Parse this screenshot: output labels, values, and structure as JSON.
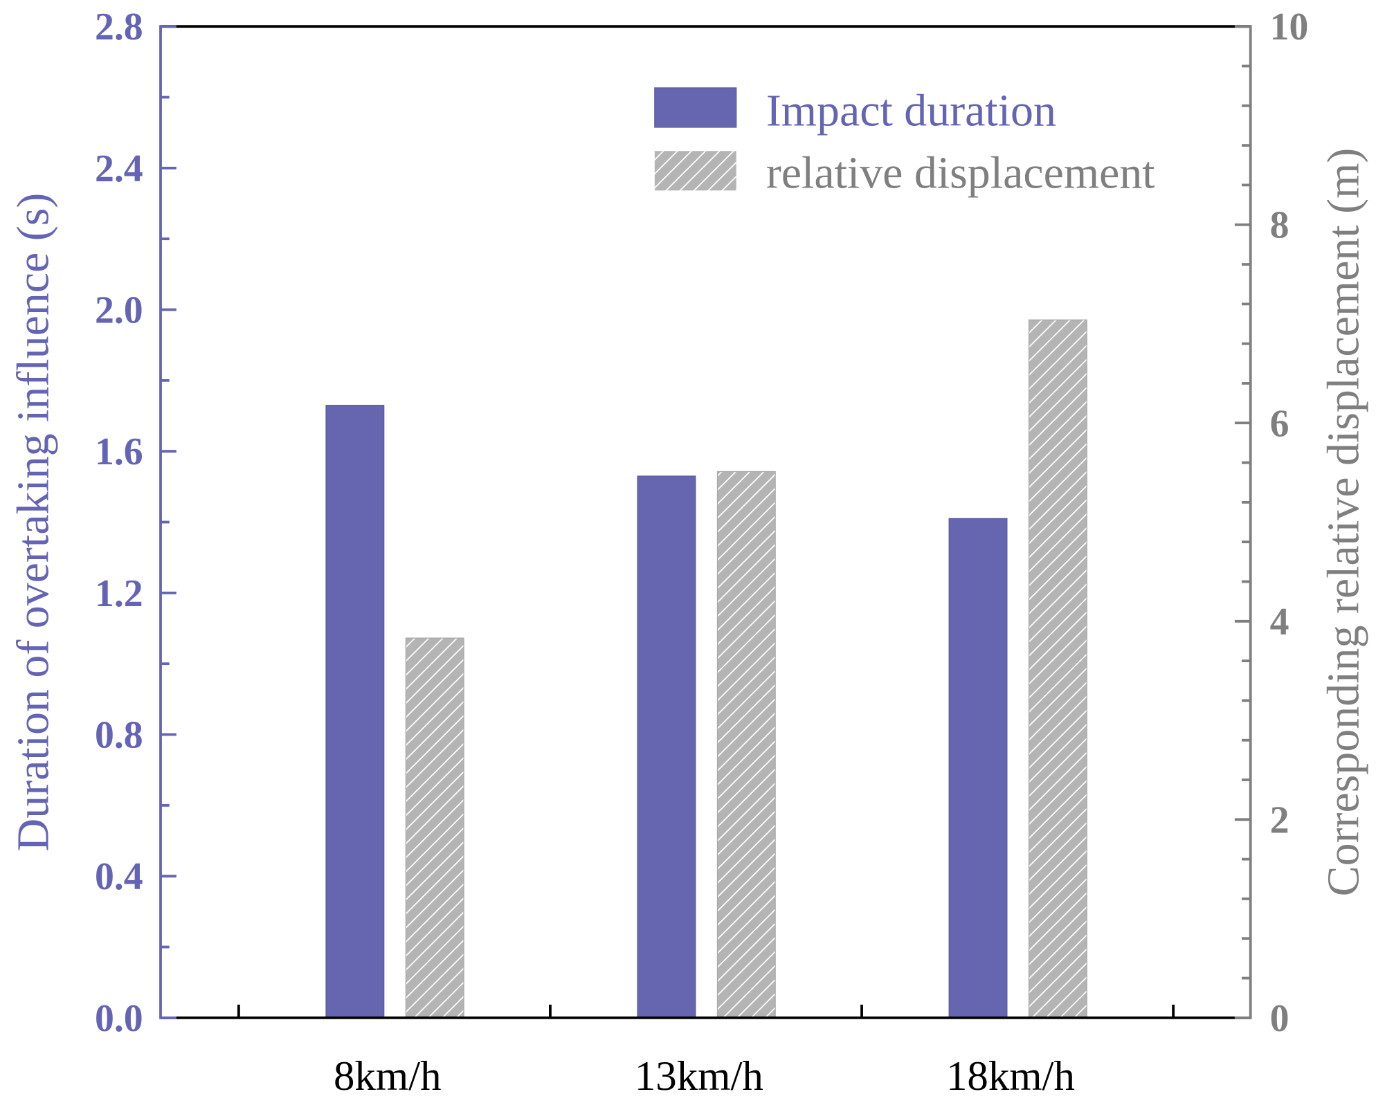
{
  "chart_data": {
    "type": "bar",
    "categories": [
      "8km/h",
      "13km/h",
      "18km/h"
    ],
    "series": [
      {
        "name": "Impact duration",
        "axis": "left",
        "values": [
          1.73,
          1.53,
          1.41
        ],
        "color": "#6666b0",
        "pattern": "solid"
      },
      {
        "name": "relative displacement",
        "axis": "right",
        "values": [
          3.83,
          5.51,
          7.04
        ],
        "color": "#b4b4b4",
        "pattern": "hatch"
      }
    ],
    "ylabel": "Duration of overtaking influence (s)",
    "ylabel_right": "Corresponding relative displacement (m)",
    "xlabel": "",
    "ylim": [
      0,
      2.8
    ],
    "ylim_right": [
      0,
      10
    ],
    "yticks": [
      "0.0",
      "0.4",
      "0.8",
      "1.2",
      "1.6",
      "2.0",
      "2.4",
      "2.8"
    ],
    "yticks_right": [
      "0",
      "2",
      "4",
      "6",
      "8",
      "10"
    ],
    "legend_position": "top-right",
    "grid": false,
    "colors": {
      "left_axis": "#6464b4",
      "right_axis": "#7f7f7f",
      "frame": "#000000"
    }
  }
}
